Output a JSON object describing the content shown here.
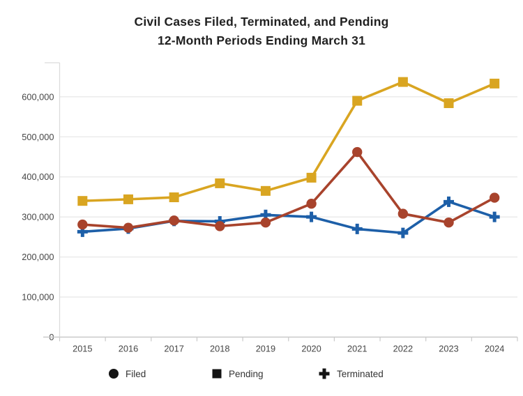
{
  "title": {
    "line1": "Civil Cases Filed, Terminated, and Pending",
    "line2": "12-Month Periods Ending March 31"
  },
  "colors": {
    "filed": "#A8432C",
    "pending": "#D9A521",
    "terminated": "#1D5FA8",
    "gridline": "#E8E8E8",
    "axis_line": "#C9C9C9",
    "y_axis_line": "#DCDCDC",
    "tick_label": "#464646",
    "title_text": "#212121",
    "legend_marker": "#141414",
    "legend_text": "#333333",
    "background": "#FFFFFF"
  },
  "chart_data": {
    "type": "line",
    "title": "Civil Cases Filed, Terminated, and Pending — 12-Month Periods Ending March 31",
    "x": [
      2015,
      2016,
      2017,
      2018,
      2019,
      2020,
      2021,
      2022,
      2023,
      2024
    ],
    "series": [
      {
        "name": "Filed",
        "marker": "circle",
        "color_key": "filed",
        "values": [
          281000,
          273000,
          291000,
          277000,
          286000,
          333000,
          462000,
          308000,
          286000,
          348000
        ]
      },
      {
        "name": "Pending",
        "marker": "square",
        "color_key": "pending",
        "values": [
          340000,
          344000,
          349000,
          384000,
          365000,
          398000,
          590000,
          637000,
          584000,
          633000
        ]
      },
      {
        "name": "Terminated",
        "marker": "plus",
        "color_key": "terminated",
        "values": [
          263000,
          271000,
          290000,
          289000,
          305000,
          300000,
          270000,
          260000,
          338000,
          300000
        ]
      }
    ],
    "ylim": [
      0,
      685000
    ],
    "y_ticks": [
      0,
      100000,
      200000,
      300000,
      400000,
      500000,
      600000
    ],
    "grid": true,
    "legend_position": "bottom",
    "xlabel": "",
    "ylabel": ""
  },
  "legend": {
    "items": [
      {
        "label": "Filed",
        "marker": "circle"
      },
      {
        "label": "Pending",
        "marker": "square"
      },
      {
        "label": "Terminated",
        "marker": "plus"
      }
    ]
  }
}
